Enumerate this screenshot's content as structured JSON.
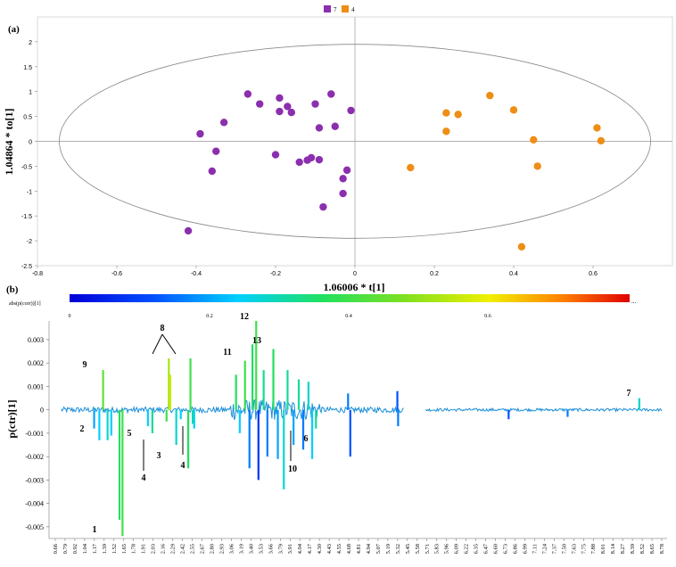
{
  "chart_data": [
    {
      "type": "scatter",
      "panel_label": "(a)",
      "xlabel": "1.06006 * t[1]",
      "ylabel": "1.04864 * to[1]",
      "xlim": [
        -0.8,
        0.8
      ],
      "ylim": [
        -2.5,
        2.5
      ],
      "xticks": [
        -0.8,
        -0.6,
        -0.4,
        -0.2,
        0,
        0.2,
        0.4,
        0.6
      ],
      "yticks": [
        -2.5,
        -2,
        -1.5,
        -1,
        -0.5,
        0,
        0.5,
        1,
        1.5,
        2
      ],
      "ellipse": {
        "cx": 0,
        "cy": 0,
        "rx": 0.745,
        "ry": 1.95
      },
      "legend": [
        {
          "label": "7",
          "color": "#8B2FAE"
        },
        {
          "label": "4",
          "color": "#EE8E14"
        }
      ],
      "series": [
        {
          "name": "7",
          "color": "#8B2FAE",
          "points": [
            [
              -0.27,
              0.95
            ],
            [
              -0.24,
              0.75
            ],
            [
              -0.19,
              0.87
            ],
            [
              -0.17,
              0.7
            ],
            [
              -0.16,
              0.58
            ],
            [
              -0.19,
              0.6
            ],
            [
              -0.06,
              0.95
            ],
            [
              -0.1,
              0.75
            ],
            [
              -0.01,
              0.62
            ],
            [
              -0.33,
              0.38
            ],
            [
              -0.05,
              0.3
            ],
            [
              -0.09,
              0.27
            ],
            [
              -0.39,
              0.15
            ],
            [
              -0.35,
              -0.2
            ],
            [
              -0.2,
              -0.27
            ],
            [
              -0.14,
              -0.42
            ],
            [
              -0.12,
              -0.38
            ],
            [
              -0.11,
              -0.33
            ],
            [
              -0.09,
              -0.37
            ],
            [
              -0.36,
              -0.6
            ],
            [
              -0.02,
              -0.58
            ],
            [
              -0.03,
              -0.75
            ],
            [
              -0.03,
              -1.05
            ],
            [
              -0.08,
              -1.32
            ],
            [
              -0.42,
              -1.8
            ]
          ]
        },
        {
          "name": "4",
          "color": "#EE8E14",
          "points": [
            [
              0.34,
              0.92
            ],
            [
              0.23,
              0.57
            ],
            [
              0.26,
              0.54
            ],
            [
              0.4,
              0.63
            ],
            [
              0.23,
              0.2
            ],
            [
              0.61,
              0.27
            ],
            [
              0.62,
              0.01
            ],
            [
              0.45,
              0.03
            ],
            [
              0.46,
              -0.5
            ],
            [
              0.14,
              -0.53
            ],
            [
              0.42,
              -2.12
            ]
          ]
        }
      ]
    },
    {
      "type": "line",
      "panel_label": "(b)",
      "ylabel": "p(ctr)[1]",
      "ylim": [
        -0.0055,
        0.0038
      ],
      "yticks": [
        0.003,
        0.002,
        0.001,
        0,
        -0.001,
        -0.002,
        -0.003,
        -0.004,
        -0.005
      ],
      "ytick_labels": [
        "0.003",
        "0.002",
        "0.001",
        "0",
        "-0.001",
        "-0.002",
        "-0.003",
        "-0.004",
        "-0.005"
      ],
      "xlim": [
        0.66,
        8.78
      ],
      "xtick_labels": [
        "0.66",
        "0.79",
        "0.92",
        "1.04",
        "1.17",
        "1.39",
        "1.52",
        "1.65",
        "1.78",
        "1.91",
        "2.03",
        "2.16",
        "2.29",
        "2.42",
        "2.55",
        "2.67",
        "2.80",
        "2.93",
        "3.06",
        "3.19",
        "3.40",
        "3.53",
        "3.66",
        "3.79",
        "3.91",
        "4.04",
        "4.17",
        "4.30",
        "4.43",
        "4.55",
        "4.68",
        "4.81",
        "4.94",
        "5.07",
        "5.19",
        "5.32",
        "5.45",
        "5.58",
        "5.71",
        "5.83",
        "5.96",
        "6.09",
        "6.22",
        "6.35",
        "6.47",
        "6.60",
        "6.73",
        "6.86",
        "6.99",
        "7.11",
        "7.24",
        "7.37",
        "7.50",
        "7.63",
        "7.75",
        "7.88",
        "8.01",
        "8.14",
        "8.27",
        "8.39",
        "8.52",
        "8.65",
        "8.78"
      ],
      "colorbar": {
        "title": "abs(p(corr))[1]",
        "ticks": [
          "0",
          "0.2",
          "0.4",
          "0.6"
        ],
        "max_label": "..."
      },
      "peak_labels": [
        "1",
        "2",
        "3",
        "4",
        "4",
        "5",
        "6",
        "7",
        "8",
        "9",
        "10",
        "11",
        "12",
        "13"
      ],
      "spikes": [
        {
          "x": 1.36,
          "y": -0.0013,
          "c": 0.35
        },
        {
          "x": 1.41,
          "y": -0.0011,
          "c": 0.3
        },
        {
          "x": 1.52,
          "y": -0.0047,
          "c": 0.45
        },
        {
          "x": 1.56,
          "y": -0.0054,
          "c": 0.5
        },
        {
          "x": 1.3,
          "y": 0.0017,
          "c": 0.55
        },
        {
          "x": 1.25,
          "y": -0.0013,
          "c": 0.3
        },
        {
          "x": 1.18,
          "y": -0.0008,
          "c": 0.25
        },
        {
          "x": 1.9,
          "y": -0.0007,
          "c": 0.3
        },
        {
          "x": 1.96,
          "y": -0.001,
          "c": 0.4
        },
        {
          "x": 2.18,
          "y": 0.0022,
          "c": 0.65
        },
        {
          "x": 2.2,
          "y": 0.0015,
          "c": 0.7
        },
        {
          "x": 2.15,
          "y": -0.0005,
          "c": 0.5
        },
        {
          "x": 2.28,
          "y": -0.0015,
          "c": 0.35
        },
        {
          "x": 2.34,
          "y": -0.0004,
          "c": 0.3
        },
        {
          "x": 2.47,
          "y": 0.0022,
          "c": 0.5
        },
        {
          "x": 2.44,
          "y": -0.0025,
          "c": 0.45
        },
        {
          "x": 2.5,
          "y": -0.0006,
          "c": 0.4
        },
        {
          "x": 2.52,
          "y": -0.0008,
          "c": 0.3
        },
        {
          "x": 3.08,
          "y": 0.0015,
          "c": 0.45
        },
        {
          "x": 3.13,
          "y": -0.001,
          "c": 0.3
        },
        {
          "x": 3.2,
          "y": 0.0021,
          "c": 0.5
        },
        {
          "x": 3.26,
          "y": -0.0025,
          "c": 0.2
        },
        {
          "x": 3.3,
          "y": 0.0028,
          "c": 0.45
        },
        {
          "x": 3.35,
          "y": 0.0038,
          "c": 0.5
        },
        {
          "x": 3.38,
          "y": -0.003,
          "c": 0.1
        },
        {
          "x": 3.45,
          "y": 0.0017,
          "c": 0.4
        },
        {
          "x": 3.5,
          "y": -0.002,
          "c": 0.2
        },
        {
          "x": 3.58,
          "y": 0.0026,
          "c": 0.45
        },
        {
          "x": 3.64,
          "y": -0.0021,
          "c": 0.25
        },
        {
          "x": 3.72,
          "y": -0.0034,
          "c": 0.35
        },
        {
          "x": 3.77,
          "y": 0.0017,
          "c": 0.4
        },
        {
          "x": 3.85,
          "y": -0.0015,
          "c": 0.25
        },
        {
          "x": 3.92,
          "y": 0.0013,
          "c": 0.4
        },
        {
          "x": 3.98,
          "y": -0.0017,
          "c": 0.2
        },
        {
          "x": 4.05,
          "y": 0.0012,
          "c": 0.35
        },
        {
          "x": 4.1,
          "y": -0.0021,
          "c": 0.3
        },
        {
          "x": 4.15,
          "y": -0.0008,
          "c": 0.4
        },
        {
          "x": 4.58,
          "y": 0.0007,
          "c": 0.2
        },
        {
          "x": 4.61,
          "y": -0.002,
          "c": 0.15
        },
        {
          "x": 5.24,
          "y": 0.0008,
          "c": 0.15
        },
        {
          "x": 5.25,
          "y": -0.0007,
          "c": 0.2
        },
        {
          "x": 6.73,
          "y": -0.0004,
          "c": 0.15
        },
        {
          "x": 7.52,
          "y": -0.0003,
          "c": 0.2
        },
        {
          "x": 8.48,
          "y": 0.0005,
          "c": 0.35
        }
      ]
    }
  ]
}
